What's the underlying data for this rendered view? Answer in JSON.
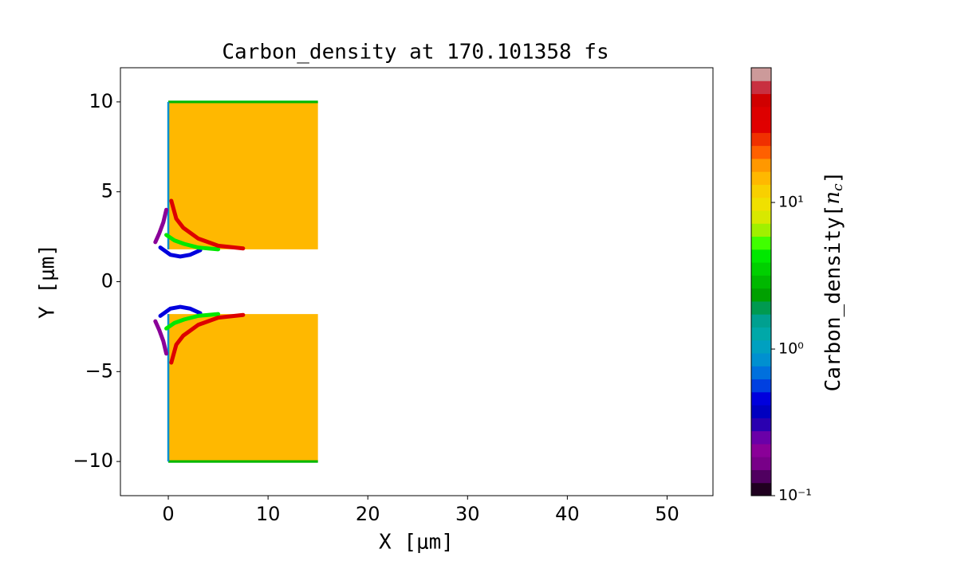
{
  "chart_data": {
    "type": "heatmap",
    "title": "Carbon_density at 170.101358 fs",
    "xlabel": "X [μm]",
    "ylabel": "Y [μm]",
    "xlim": [
      -4.8,
      54.6
    ],
    "ylim": [
      -11.9,
      11.9
    ],
    "xticks": [
      0,
      10,
      20,
      30,
      40,
      50
    ],
    "yticks": [
      {
        "value": -10,
        "label": "−10"
      },
      {
        "value": -5,
        "label": "−5"
      },
      0,
      5,
      10
    ],
    "regions": [
      {
        "x": [
          0,
          15
        ],
        "y": [
          1.8,
          10
        ],
        "value": 14
      },
      {
        "x": [
          0,
          15
        ],
        "y": [
          -10,
          -1.8
        ],
        "value": 14
      },
      {
        "x": [
          0,
          15
        ],
        "y": [
          9.93,
          10.07
        ],
        "value": 3
      },
      {
        "x": [
          0,
          15
        ],
        "y": [
          -10.07,
          -9.93
        ],
        "value": 3
      },
      {
        "x": [
          -0.1,
          0.1
        ],
        "y": [
          1.8,
          10
        ],
        "value": 0.8
      },
      {
        "x": [
          -0.1,
          0.1
        ],
        "y": [
          -10,
          -1.8
        ],
        "value": 0.8
      }
    ],
    "contours": [
      {
        "x": [
          -1.3,
          -0.9,
          -0.5,
          -0.2
        ],
        "y": [
          2.2,
          2.7,
          3.3,
          4.0
        ],
        "value": 0.2
      },
      {
        "x": [
          -0.8,
          0.2,
          1.2,
          2.2,
          3.2
        ],
        "y": [
          1.9,
          1.5,
          1.4,
          1.5,
          1.75
        ],
        "value": 0.5
      },
      {
        "x": [
          -0.2,
          0.6,
          1.6,
          3.0,
          5.0
        ],
        "y": [
          2.6,
          2.3,
          2.1,
          1.9,
          1.8
        ],
        "value": 4
      },
      {
        "x": [
          0.3,
          0.8,
          1.5,
          3.0,
          5.0,
          7.5
        ],
        "y": [
          4.5,
          3.5,
          3.0,
          2.4,
          2.0,
          1.85
        ],
        "value": 40
      },
      {
        "x": [
          -1.3,
          -0.9,
          -0.5,
          -0.2
        ],
        "y": [
          -2.2,
          -2.7,
          -3.3,
          -4.0
        ],
        "value": 0.2
      },
      {
        "x": [
          -0.8,
          0.2,
          1.2,
          2.2,
          3.2
        ],
        "y": [
          -1.9,
          -1.5,
          -1.4,
          -1.5,
          -1.75
        ],
        "value": 0.5
      },
      {
        "x": [
          -0.2,
          0.6,
          1.6,
          3.0,
          5.0
        ],
        "y": [
          -2.6,
          -2.3,
          -2.1,
          -1.9,
          -1.8
        ],
        "value": 4
      },
      {
        "x": [
          0.3,
          0.8,
          1.5,
          3.0,
          5.0,
          7.5
        ],
        "y": [
          -4.5,
          -3.5,
          -3.0,
          -2.4,
          -2.0,
          -1.85
        ],
        "value": 40
      }
    ],
    "colorbar": {
      "label": [
        "Carbon_density[",
        "n",
        "c",
        "]"
      ],
      "log": true,
      "lim": [
        0.1,
        83
      ],
      "ticks": [
        {
          "value": 0.1,
          "label": "10⁻¹"
        },
        {
          "value": 1,
          "label": "10⁰"
        },
        {
          "value": 10,
          "label": "10¹"
        }
      ],
      "colors": [
        "#200020",
        "#500060",
        "#780088",
        "#8a0098",
        "#6a00a8",
        "#2a00b0",
        "#0000c0",
        "#0000dd",
        "#0040e0",
        "#0070dd",
        "#0090d0",
        "#00a0c0",
        "#00a8a8",
        "#00a090",
        "#009a50",
        "#00a000",
        "#00b800",
        "#00d000",
        "#00e800",
        "#40ff00",
        "#a0f000",
        "#d8e800",
        "#f0e000",
        "#f8d000",
        "#ffb800",
        "#ff9800",
        "#ff6000",
        "#f03000",
        "#e00000",
        "#dd0000",
        "#d00000",
        "#c83040",
        "#cc9a9a"
      ]
    }
  }
}
